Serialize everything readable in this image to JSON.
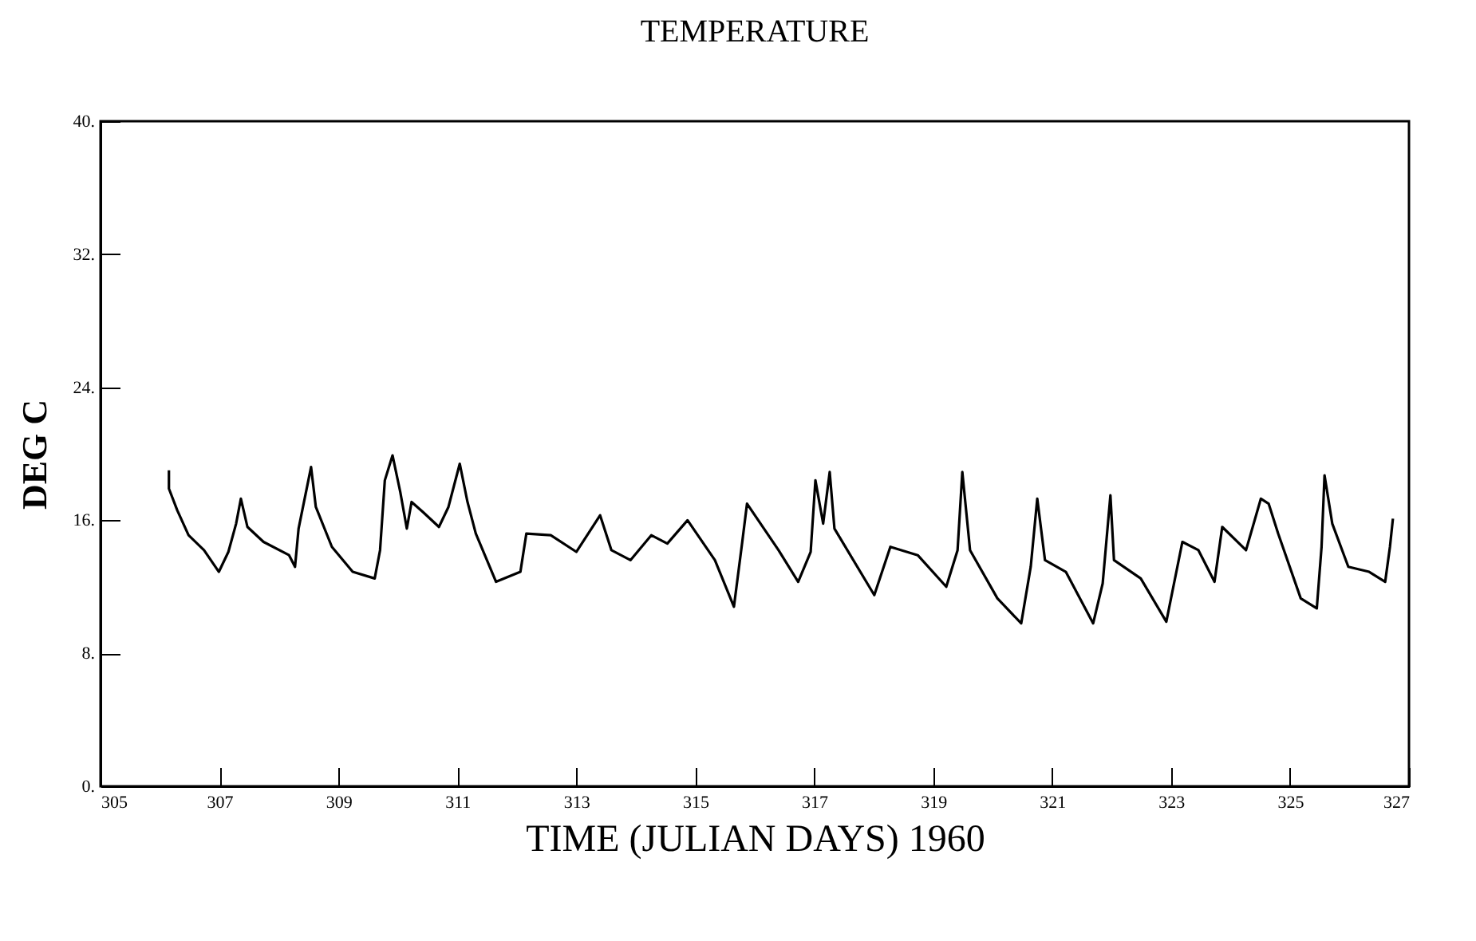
{
  "chart_data": {
    "type": "line",
    "title": "TEMPERATURE",
    "xlabel": "TIME (JULIAN DAYS) 1960",
    "ylabel": "DEG C",
    "x": [
      306.15,
      306.15,
      306.29,
      306.48,
      306.74,
      306.99,
      307.15,
      307.28,
      307.36,
      307.47,
      307.74,
      308.17,
      308.27,
      308.33,
      308.54,
      308.62,
      308.89,
      309.24,
      309.61,
      309.7,
      309.78,
      309.91,
      310.04,
      310.15,
      310.23,
      310.42,
      310.69,
      310.85,
      311.04,
      311.17,
      311.31,
      311.65,
      312.06,
      312.16,
      312.57,
      313.0,
      313.4,
      313.59,
      313.91,
      314.26,
      314.53,
      314.87,
      315.33,
      315.65,
      315.79,
      315.87,
      316.4,
      316.73,
      316.94,
      317.02,
      317.15,
      317.26,
      317.34,
      318.01,
      318.28,
      318.74,
      319.22,
      319.41,
      319.49,
      319.62,
      320.08,
      320.48,
      320.64,
      320.75,
      320.88,
      321.23,
      321.69,
      321.85,
      321.98,
      322.04,
      322.49,
      322.92,
      323.19,
      323.46,
      323.73,
      323.86,
      324.26,
      324.51,
      324.64,
      324.8,
      325.18,
      325.45,
      325.53,
      325.58,
      325.71,
      325.98,
      326.33,
      326.6,
      326.68,
      326.73
    ],
    "series": [
      {
        "color": "#000000",
        "values": [
          19.0,
          17.9,
          16.6,
          15.1,
          14.2,
          12.9,
          14.1,
          15.8,
          17.3,
          15.6,
          14.7,
          13.9,
          13.2,
          15.5,
          19.2,
          16.8,
          14.4,
          12.9,
          12.5,
          14.2,
          18.4,
          19.9,
          17.7,
          15.5,
          17.1,
          16.5,
          15.6,
          16.8,
          19.4,
          17.1,
          15.2,
          12.3,
          12.9,
          15.2,
          15.1,
          14.1,
          16.3,
          14.2,
          13.6,
          15.1,
          14.6,
          16.0,
          13.6,
          10.8,
          14.7,
          17.0,
          14.2,
          12.3,
          14.1,
          18.4,
          15.8,
          18.9,
          15.5,
          11.5,
          14.4,
          13.9,
          12.0,
          14.2,
          18.9,
          14.2,
          11.3,
          9.8,
          13.2,
          17.3,
          13.6,
          12.9,
          9.8,
          12.2,
          17.5,
          13.6,
          12.5,
          9.9,
          14.7,
          14.2,
          12.3,
          15.6,
          14.2,
          17.3,
          17.0,
          15.2,
          11.3,
          10.7,
          14.4,
          18.7,
          15.8,
          13.2,
          12.9,
          12.3,
          14.4,
          16.1
        ]
      }
    ],
    "xlim": [
      305,
      327
    ],
    "xticks": [
      305,
      307,
      309,
      311,
      313,
      315,
      317,
      319,
      321,
      323,
      325,
      327
    ],
    "ylim": [
      0,
      40
    ],
    "yticks": [
      {
        "value": 0,
        "label": "0."
      },
      {
        "value": 8,
        "label": "8."
      },
      {
        "value": 16,
        "label": "16."
      },
      {
        "value": 24,
        "label": "24."
      },
      {
        "value": 32,
        "label": "32."
      },
      {
        "value": 40,
        "label": "40."
      }
    ],
    "grid": false,
    "marker": "none",
    "line_style": "solid"
  }
}
